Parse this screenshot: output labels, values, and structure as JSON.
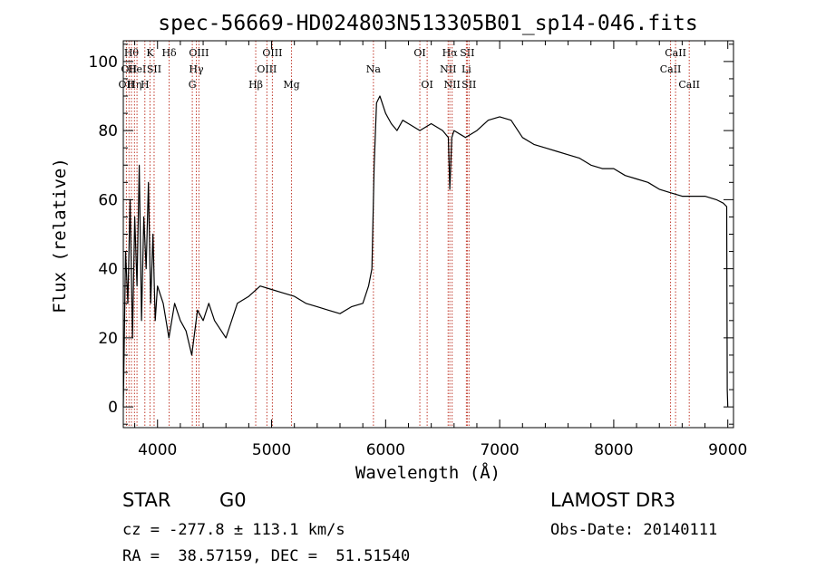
{
  "chart_data": {
    "type": "line",
    "title": "spec-56669-HD024803N513305B01_sp14-046.fits",
    "xlabel": "Wavelength (Å)",
    "ylabel": "Flux (relative)",
    "xlim": [
      3700,
      9050
    ],
    "ylim": [
      -6,
      106
    ],
    "x_ticks": [
      "4000",
      "5000",
      "6000",
      "7000",
      "8000",
      "9000"
    ],
    "y_ticks": [
      "0",
      "20",
      "40",
      "60",
      "80",
      "100"
    ],
    "grid": false,
    "legend": "none",
    "line_color": "#000000",
    "marker_color": "#c0392b",
    "series": [
      {
        "x": [
          3700,
          3720,
          3740,
          3760,
          3780,
          3800,
          3820,
          3840,
          3860,
          3880,
          3900,
          3920,
          3940,
          3960,
          3980,
          4000,
          4050,
          4100,
          4150,
          4200,
          4250,
          4300,
          4350,
          4400,
          4450,
          4500,
          4600,
          4700,
          4800,
          4900,
          5000,
          5100,
          5200,
          5300,
          5400,
          5500,
          5600,
          5700,
          5800,
          5850,
          5880,
          5900,
          5920,
          5950,
          6000,
          6050,
          6100,
          6150,
          6200,
          6300,
          6400,
          6500,
          6550,
          6563,
          6580,
          6600,
          6700,
          6800,
          6900,
          7000,
          7100,
          7200,
          7300,
          7400,
          7500,
          7600,
          7700,
          7800,
          7900,
          8000,
          8100,
          8200,
          8300,
          8400,
          8500,
          8600,
          8700,
          8800,
          8900,
          8960,
          8990,
          8995,
          9000
        ],
        "y": [
          0,
          45,
          30,
          60,
          20,
          55,
          35,
          70,
          25,
          55,
          40,
          65,
          30,
          50,
          25,
          35,
          30,
          20,
          30,
          25,
          22,
          15,
          28,
          25,
          30,
          25,
          20,
          30,
          32,
          35,
          34,
          33,
          32,
          30,
          29,
          28,
          27,
          29,
          30,
          35,
          40,
          70,
          88,
          90,
          85,
          82,
          80,
          83,
          82,
          80,
          82,
          80,
          78,
          63,
          78,
          80,
          78,
          80,
          83,
          84,
          83,
          78,
          76,
          75,
          74,
          73,
          72,
          70,
          69,
          69,
          67,
          66,
          65,
          63,
          62,
          61,
          61,
          61,
          60,
          59,
          58,
          5,
          0
        ]
      }
    ],
    "line_markers": [
      {
        "x": 3727,
        "labels": [
          "OII"
        ],
        "row": 2
      },
      {
        "x": 3750,
        "labels": [
          "OII"
        ],
        "row": 1
      },
      {
        "x": 3771,
        "labels": [
          "Hθ"
        ],
        "row": 0
      },
      {
        "x": 3798,
        "labels": [
          "Hη"
        ],
        "row": 2
      },
      {
        "x": 3820,
        "labels": [
          "HeI"
        ],
        "row": 1
      },
      {
        "x": 3889,
        "labels": [
          "H"
        ],
        "row": 2
      },
      {
        "x": 3934,
        "labels": [
          "K"
        ],
        "row": 0
      },
      {
        "x": 3970,
        "labels": [
          "SII"
        ],
        "row": 1
      },
      {
        "x": 4102,
        "labels": [
          "Hδ"
        ],
        "row": 0
      },
      {
        "x": 4305,
        "labels": [
          "G"
        ],
        "row": 2
      },
      {
        "x": 4340,
        "labels": [
          "Hγ"
        ],
        "row": 1
      },
      {
        "x": 4363,
        "labels": [
          "OIII"
        ],
        "row": 0
      },
      {
        "x": 4861,
        "labels": [
          "Hβ"
        ],
        "row": 2
      },
      {
        "x": 4959,
        "labels": [
          "OIII"
        ],
        "row": 1
      },
      {
        "x": 5007,
        "labels": [
          "OIII"
        ],
        "row": 0
      },
      {
        "x": 5175,
        "labels": [
          "Mg"
        ],
        "row": 2
      },
      {
        "x": 5893,
        "labels": [
          "Na"
        ],
        "row": 1
      },
      {
        "x": 6300,
        "labels": [
          "OI"
        ],
        "row": 0
      },
      {
        "x": 6364,
        "labels": [
          "OI"
        ],
        "row": 2
      },
      {
        "x": 6548,
        "labels": [
          "NII"
        ],
        "row": 1
      },
      {
        "x": 6563,
        "labels": [
          "Hα"
        ],
        "row": 0
      },
      {
        "x": 6583,
        "labels": [
          "NII"
        ],
        "row": 2
      },
      {
        "x": 6708,
        "labels": [
          "Li"
        ],
        "row": 1
      },
      {
        "x": 6716,
        "labels": [
          "SII"
        ],
        "row": 0
      },
      {
        "x": 6731,
        "labels": [
          "SII"
        ],
        "row": 2
      },
      {
        "x": 8498,
        "labels": [
          "CaII"
        ],
        "row": 1
      },
      {
        "x": 8542,
        "labels": [
          "CaII"
        ],
        "row": 0
      },
      {
        "x": 8662,
        "labels": [
          "CaII"
        ],
        "row": 2
      }
    ]
  },
  "footer": {
    "object_class": "STAR",
    "subclass": "G0",
    "survey": "LAMOST DR3",
    "cz": "cz = -277.8 ± 113.1 km/s",
    "obs_date": "Obs-Date: 20140111",
    "coords": "RA =  38.57159, DEC =  51.51540"
  }
}
